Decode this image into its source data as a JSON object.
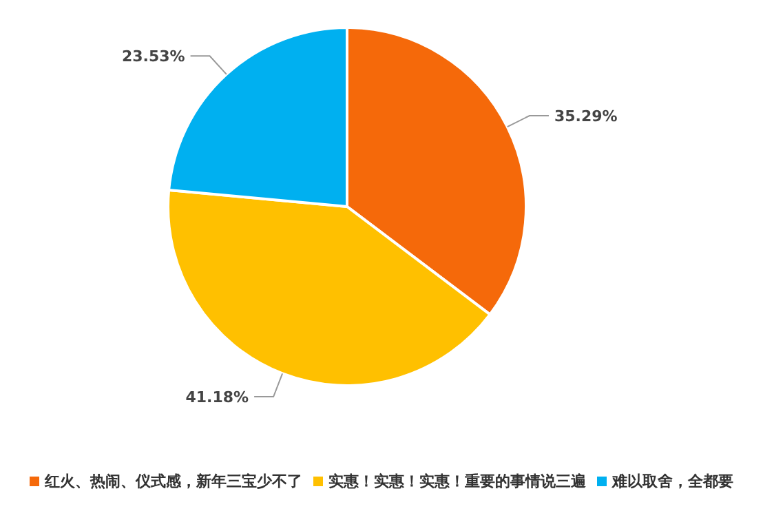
{
  "chart_data": {
    "type": "pie",
    "categories": [
      "红火、热闹、仪式感，新年三宝少不了",
      "实惠！实惠！实惠！重要的事情说三遍",
      "难以取舍，全都要"
    ],
    "values": [
      35.29,
      41.18,
      23.53
    ],
    "colors": [
      "#f5690a",
      "#ffc000",
      "#00b0f0"
    ],
    "value_labels": [
      "35.29%",
      "41.18%",
      "23.53%"
    ],
    "legend": "bottom"
  }
}
